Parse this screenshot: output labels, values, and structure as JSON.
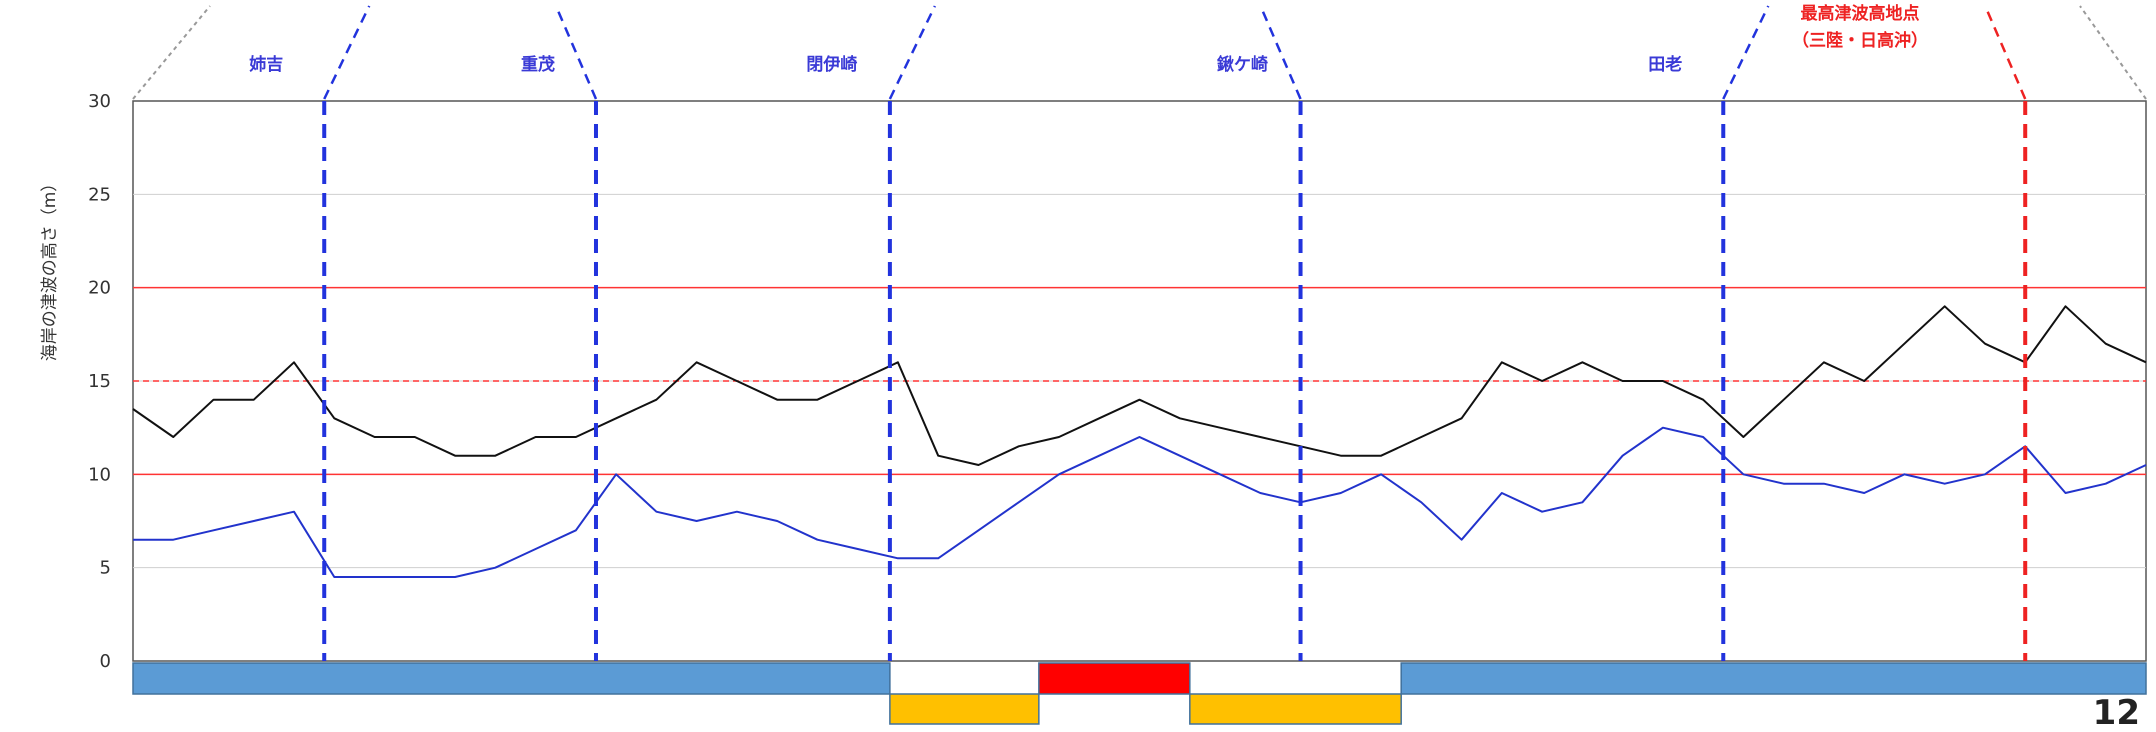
{
  "page_number": "12",
  "chart_data": {
    "type": "line",
    "title": "",
    "xlabel": "",
    "ylabel": "海岸の津波の高さ（m）",
    "ylim": [
      0,
      30
    ],
    "yticks": [
      "0",
      "5",
      "10",
      "15",
      "20",
      "25",
      "30"
    ],
    "x_domain": [
      0,
      100
    ],
    "grid": true,
    "reference_lines": [
      {
        "y": 10,
        "style": "solid",
        "color": "#ff3333"
      },
      {
        "y": 20,
        "style": "solid",
        "color": "#ff3333"
      },
      {
        "y": 15,
        "style": "dashed",
        "color": "#ff3333"
      }
    ],
    "location_markers": [
      {
        "name": "姉吉",
        "x": 9.5,
        "color": "#2233dd"
      },
      {
        "name": "重茂",
        "x": 23.0,
        "color": "#2233dd"
      },
      {
        "name": "閉伊崎",
        "x": 37.6,
        "color": "#2233dd"
      },
      {
        "name": "鍬ケ崎",
        "x": 58.0,
        "color": "#2233dd"
      },
      {
        "name": "田老",
        "x": 79.0,
        "color": "#2233dd"
      },
      {
        "name": "",
        "x": 94.0,
        "color": "#ee2222"
      }
    ],
    "highest_point_label": [
      "最高津波高地点",
      "（三陸・日高沖）"
    ],
    "series": [
      {
        "color": "#111111",
        "x": [
          0,
          2,
          4,
          6,
          8,
          10,
          12,
          14,
          16,
          18,
          20,
          22,
          24,
          26,
          28,
          30,
          32,
          34,
          36,
          38,
          40,
          42,
          44,
          46,
          48,
          50,
          52,
          54,
          56,
          58,
          60,
          62,
          64,
          66,
          68,
          70,
          72,
          74,
          76,
          78,
          80,
          82,
          84,
          86,
          88,
          90,
          92,
          94,
          96,
          98,
          100
        ],
        "values": [
          13.5,
          12,
          14,
          14,
          16,
          13,
          12,
          12,
          11,
          11,
          12,
          12,
          13,
          14,
          16,
          15,
          14,
          14,
          15,
          16,
          11,
          10.5,
          11.5,
          12,
          13,
          14,
          13,
          12.5,
          12,
          11.5,
          11,
          11,
          12,
          13,
          16,
          15,
          16,
          15,
          15,
          14,
          12,
          14,
          16,
          15,
          17,
          19,
          17,
          16,
          19,
          17,
          16
        ]
      },
      {
        "color": "#2233cc",
        "x": [
          0,
          2,
          4,
          6,
          8,
          10,
          12,
          14,
          16,
          18,
          20,
          22,
          24,
          26,
          28,
          30,
          32,
          34,
          36,
          38,
          40,
          42,
          44,
          46,
          48,
          50,
          52,
          54,
          56,
          58,
          60,
          62,
          64,
          66,
          68,
          70,
          72,
          74,
          76,
          78,
          80,
          82,
          84,
          86,
          88,
          90,
          92,
          94,
          96,
          98,
          100
        ],
        "values": [
          6.5,
          6.5,
          7,
          7.5,
          8,
          4.5,
          4.5,
          4.5,
          4.5,
          5,
          6,
          7,
          10,
          8,
          7.5,
          8,
          7.5,
          6.5,
          6,
          5.5,
          5.5,
          7,
          8.5,
          10,
          11,
          12,
          11,
          10,
          9,
          8.5,
          9,
          10,
          8.5,
          6.5,
          9,
          8,
          8.5,
          11,
          12.5,
          12,
          10,
          9.5,
          9.5,
          9,
          10,
          9.5,
          10,
          11.5,
          9,
          9.5,
          10.5
        ]
      }
    ]
  },
  "bottom_bars": [
    {
      "x0": 0,
      "x1": 37.6,
      "level": 0,
      "color": "#5b9bd5"
    },
    {
      "x0": 37.6,
      "x1": 45.0,
      "level": 1,
      "color": "#ffc000"
    },
    {
      "x0": 45.0,
      "x1": 52.5,
      "level": 0,
      "color": "#ff0000"
    },
    {
      "x0": 52.5,
      "x1": 63.0,
      "level": 1,
      "color": "#ffc000"
    },
    {
      "x0": 63.0,
      "x1": 100,
      "level": 0,
      "color": "#5b9bd5"
    }
  ]
}
